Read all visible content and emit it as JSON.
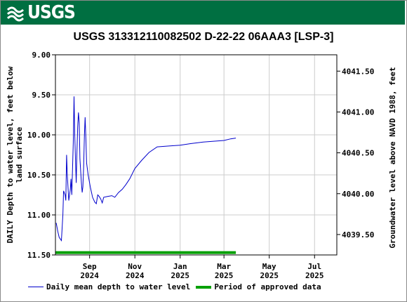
{
  "header": {
    "agency": "USGS",
    "banner_color": "#006f41"
  },
  "chart_data": {
    "type": "line",
    "title": "USGS 313312110082502 D-22-22 06AAA3 [LSP-3]",
    "ylabel": "DAILY Depth to water level, feet below land surface",
    "y2label": "Groundwater level above NAVD 1988, feet",
    "ylim": [
      11.5,
      9.0
    ],
    "y_inverted": true,
    "yticks": [
      "9.00",
      "9.50",
      "10.00",
      "10.50",
      "11.00",
      "11.50"
    ],
    "y2lim": [
      4039.25,
      4041.7
    ],
    "y2ticks": [
      "4041.50",
      "4041.00",
      "4040.50",
      "4040.00",
      "4039.50"
    ],
    "xlim": [
      "2024-07-17",
      "2025-07-31"
    ],
    "xticks": [
      {
        "date": "2024-09-01",
        "line1": "Sep",
        "line2": "2024"
      },
      {
        "date": "2024-11-01",
        "line1": "Nov",
        "line2": "2024"
      },
      {
        "date": "2025-01-01",
        "line1": "Jan",
        "line2": "2025"
      },
      {
        "date": "2025-03-01",
        "line1": "Mar",
        "line2": "2025"
      },
      {
        "date": "2025-05-01",
        "line1": "May",
        "line2": "2025"
      },
      {
        "date": "2025-07-01",
        "line1": "Jul",
        "line2": "2025"
      }
    ],
    "grid": true,
    "series": [
      {
        "name": "Daily mean depth to water level",
        "color": "#0000cc",
        "points": [
          [
            "2024-07-18",
            11.1
          ],
          [
            "2024-07-20",
            11.2
          ],
          [
            "2024-07-22",
            11.28
          ],
          [
            "2024-07-25",
            11.32
          ],
          [
            "2024-07-27",
            11.0
          ],
          [
            "2024-07-28",
            10.7
          ],
          [
            "2024-07-30",
            10.75
          ],
          [
            "2024-07-31",
            10.82
          ],
          [
            "2024-08-01",
            10.25
          ],
          [
            "2024-08-02",
            10.5
          ],
          [
            "2024-08-04",
            10.82
          ],
          [
            "2024-08-06",
            10.68
          ],
          [
            "2024-08-07",
            10.55
          ],
          [
            "2024-08-08",
            10.75
          ],
          [
            "2024-08-10",
            10.1
          ],
          [
            "2024-08-11",
            9.52
          ],
          [
            "2024-08-12",
            10.0
          ],
          [
            "2024-08-14",
            10.6
          ],
          [
            "2024-08-15",
            10.2
          ],
          [
            "2024-08-16",
            9.9
          ],
          [
            "2024-08-17",
            9.72
          ],
          [
            "2024-08-18",
            9.85
          ],
          [
            "2024-08-19",
            10.3
          ],
          [
            "2024-08-21",
            10.6
          ],
          [
            "2024-08-22",
            10.72
          ],
          [
            "2024-08-23",
            10.65
          ],
          [
            "2024-08-24",
            10.4
          ],
          [
            "2024-08-25",
            10.0
          ],
          [
            "2024-08-26",
            9.78
          ],
          [
            "2024-08-27",
            10.05
          ],
          [
            "2024-08-28",
            10.35
          ],
          [
            "2024-08-30",
            10.5
          ],
          [
            "2024-09-02",
            10.65
          ],
          [
            "2024-09-05",
            10.78
          ],
          [
            "2024-09-08",
            10.84
          ],
          [
            "2024-09-10",
            10.86
          ],
          [
            "2024-09-12",
            10.75
          ],
          [
            "2024-09-14",
            10.77
          ],
          [
            "2024-09-16",
            10.8
          ],
          [
            "2024-09-18",
            10.85
          ],
          [
            "2024-09-20",
            10.78
          ],
          [
            "2024-09-25",
            10.77
          ],
          [
            "2024-10-01",
            10.76
          ],
          [
            "2024-10-05",
            10.78
          ],
          [
            "2024-10-10",
            10.72
          ],
          [
            "2024-10-15",
            10.68
          ],
          [
            "2024-10-20",
            10.62
          ],
          [
            "2024-10-25",
            10.55
          ],
          [
            "2024-11-01",
            10.42
          ],
          [
            "2024-11-10",
            10.32
          ],
          [
            "2024-11-20",
            10.22
          ],
          [
            "2024-12-01",
            10.15
          ],
          [
            "2024-12-15",
            10.14
          ],
          [
            "2025-01-01",
            10.13
          ],
          [
            "2025-01-15",
            10.11
          ],
          [
            "2025-02-01",
            10.09
          ],
          [
            "2025-02-15",
            10.08
          ],
          [
            "2025-03-01",
            10.07
          ],
          [
            "2025-03-10",
            10.05
          ],
          [
            "2025-03-17",
            10.04
          ]
        ]
      }
    ],
    "approved_period": {
      "name": "Period of approved data",
      "color": "#00a000",
      "start": "2024-07-17",
      "end": "2025-03-17",
      "depth": 11.47
    }
  }
}
